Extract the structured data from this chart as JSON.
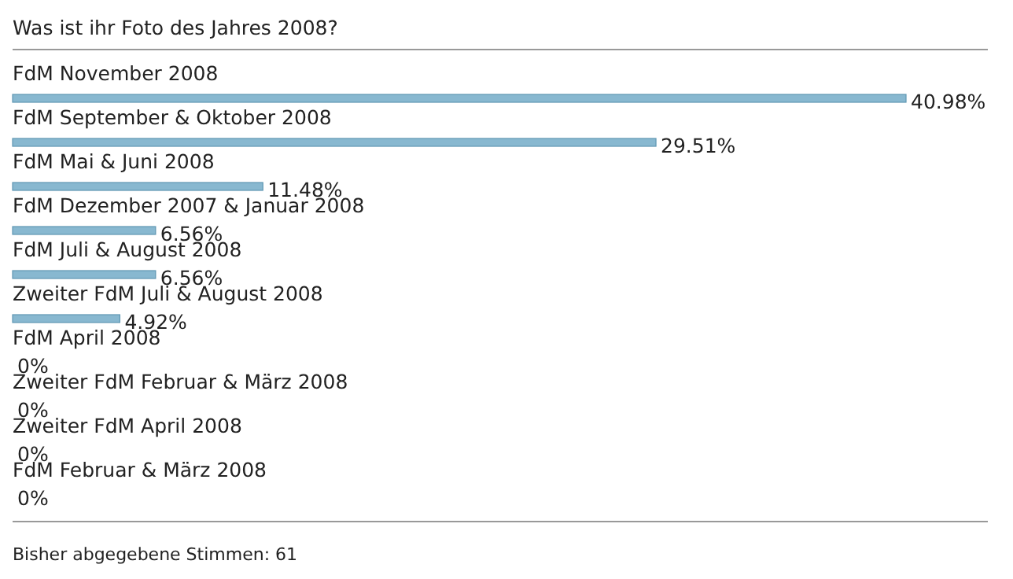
{
  "chart_data": {
    "type": "bar",
    "orientation": "horizontal",
    "title": "Was ist ihr Foto des Jahres 2008?",
    "categories": [
      "FdM November 2008",
      "FdM September & Oktober 2008",
      "FdM Mai & Juni 2008",
      "FdM Dezember 2007 & Januar 2008",
      "FdM Juli & August 2008",
      "Zweiter FdM Juli & August 2008",
      "FdM April 2008",
      "Zweiter FdM Februar & März 2008",
      "Zweiter FdM April 2008",
      "FdM Februar & März 2008"
    ],
    "values": [
      40.98,
      29.51,
      11.48,
      6.56,
      6.56,
      4.92,
      0,
      0,
      0,
      0
    ],
    "value_labels": [
      "40.98%",
      "29.51%",
      "11.48%",
      "6.56%",
      "6.56%",
      "4.92%",
      "0%",
      "0%",
      "0%",
      "0%"
    ],
    "color": "#88b8d0",
    "annotations": [
      "Bisher abgegebene Stimmen: 61"
    ]
  }
}
